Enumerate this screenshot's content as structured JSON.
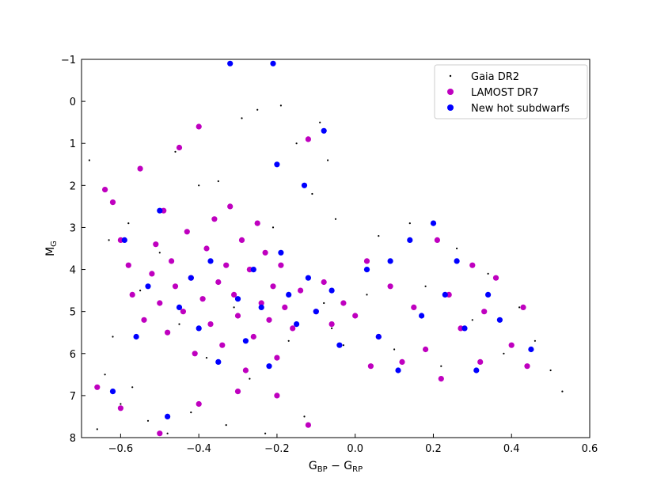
{
  "chart_data": {
    "type": "scatter",
    "title": "",
    "xlabel": "G_BP − G_RP",
    "xlabel_main": "G",
    "xlabel_sub1": "BP",
    "xlabel_sep": " − G",
    "xlabel_sub2": "RP",
    "ylabel_main": "M",
    "ylabel_sub": "G",
    "xlim": [
      -0.7,
      0.6
    ],
    "ylim": [
      8,
      -1
    ],
    "y_inverted": true,
    "x_ticks": [
      -0.6,
      -0.4,
      -0.2,
      0.0,
      0.2,
      0.4,
      0.6
    ],
    "x_tick_labels": [
      "−0.6",
      "−0.4",
      "−0.2",
      "0.0",
      "0.2",
      "0.4",
      "0.6"
    ],
    "y_ticks": [
      -1,
      0,
      1,
      2,
      3,
      4,
      5,
      6,
      7,
      8
    ],
    "y_tick_labels": [
      "−1",
      "0",
      "1",
      "2",
      "3",
      "4",
      "5",
      "6",
      "7",
      "8"
    ],
    "grid": false,
    "legend_position": "top-right",
    "series": [
      {
        "name": "Gaia DR2",
        "marker": "small-dot",
        "color": "#000000",
        "points": [
          [
            -0.68,
            1.4
          ],
          [
            -0.66,
            7.8
          ],
          [
            -0.64,
            6.5
          ],
          [
            -0.63,
            3.3
          ],
          [
            -0.62,
            5.6
          ],
          [
            -0.6,
            7.2
          ],
          [
            -0.58,
            2.9
          ],
          [
            -0.57,
            6.8
          ],
          [
            -0.55,
            4.5
          ],
          [
            -0.53,
            7.6
          ],
          [
            -0.5,
            3.6
          ],
          [
            -0.48,
            7.9
          ],
          [
            -0.46,
            1.2
          ],
          [
            -0.45,
            5.3
          ],
          [
            -0.42,
            7.4
          ],
          [
            -0.4,
            2.0
          ],
          [
            -0.38,
            6.1
          ],
          [
            -0.35,
            1.9
          ],
          [
            -0.33,
            7.7
          ],
          [
            -0.31,
            4.9
          ],
          [
            -0.29,
            0.4
          ],
          [
            -0.27,
            6.6
          ],
          [
            -0.25,
            0.2
          ],
          [
            -0.23,
            7.9
          ],
          [
            -0.21,
            3.0
          ],
          [
            -0.19,
            0.1
          ],
          [
            -0.17,
            5.7
          ],
          [
            -0.15,
            1.0
          ],
          [
            -0.13,
            7.5
          ],
          [
            -0.11,
            2.2
          ],
          [
            -0.09,
            0.5
          ],
          [
            -0.08,
            4.8
          ],
          [
            -0.07,
            1.4
          ],
          [
            -0.06,
            5.4
          ],
          [
            -0.05,
            2.8
          ],
          [
            -0.03,
            5.8
          ],
          [
            0.0,
            5.1
          ],
          [
            0.03,
            4.6
          ],
          [
            0.06,
            3.2
          ],
          [
            0.1,
            5.9
          ],
          [
            0.14,
            2.9
          ],
          [
            0.18,
            4.4
          ],
          [
            0.22,
            6.3
          ],
          [
            0.26,
            3.5
          ],
          [
            0.3,
            5.2
          ],
          [
            0.34,
            4.1
          ],
          [
            0.38,
            6.0
          ],
          [
            0.42,
            4.9
          ],
          [
            0.46,
            5.7
          ],
          [
            0.5,
            6.4
          ],
          [
            0.53,
            6.9
          ]
        ]
      },
      {
        "name": "LAMOST DR7",
        "marker": "circle",
        "color": "#bf00bf",
        "points": [
          [
            -0.64,
            2.1
          ],
          [
            -0.62,
            2.4
          ],
          [
            -0.6,
            3.3
          ],
          [
            -0.58,
            3.9
          ],
          [
            -0.57,
            4.6
          ],
          [
            -0.55,
            1.6
          ],
          [
            -0.54,
            5.2
          ],
          [
            -0.52,
            4.1
          ],
          [
            -0.51,
            3.4
          ],
          [
            -0.5,
            4.8
          ],
          [
            -0.49,
            2.6
          ],
          [
            -0.48,
            5.5
          ],
          [
            -0.47,
            3.8
          ],
          [
            -0.46,
            4.4
          ],
          [
            -0.45,
            1.1
          ],
          [
            -0.44,
            5.0
          ],
          [
            -0.43,
            3.1
          ],
          [
            -0.42,
            4.2
          ],
          [
            -0.41,
            6.0
          ],
          [
            -0.4,
            0.6
          ],
          [
            -0.39,
            4.7
          ],
          [
            -0.38,
            3.5
          ],
          [
            -0.37,
            5.3
          ],
          [
            -0.36,
            2.8
          ],
          [
            -0.35,
            4.3
          ],
          [
            -0.34,
            5.8
          ],
          [
            -0.33,
            3.9
          ],
          [
            -0.32,
            2.5
          ],
          [
            -0.31,
            4.6
          ],
          [
            -0.3,
            5.1
          ],
          [
            -0.29,
            3.3
          ],
          [
            -0.28,
            6.4
          ],
          [
            -0.27,
            4.0
          ],
          [
            -0.26,
            5.6
          ],
          [
            -0.25,
            2.9
          ],
          [
            -0.24,
            4.8
          ],
          [
            -0.23,
            3.6
          ],
          [
            -0.22,
            5.2
          ],
          [
            -0.21,
            4.4
          ],
          [
            -0.2,
            6.1
          ],
          [
            -0.19,
            3.9
          ],
          [
            -0.18,
            4.9
          ],
          [
            -0.16,
            5.4
          ],
          [
            -0.14,
            4.5
          ],
          [
            -0.12,
            0.9
          ],
          [
            -0.1,
            5.0
          ],
          [
            -0.08,
            4.3
          ],
          [
            -0.06,
            5.3
          ],
          [
            -0.03,
            4.8
          ],
          [
            0.0,
            5.1
          ],
          [
            0.03,
            3.8
          ],
          [
            0.06,
            5.6
          ],
          [
            0.09,
            4.4
          ],
          [
            0.12,
            6.2
          ],
          [
            0.15,
            4.9
          ],
          [
            0.18,
            5.9
          ],
          [
            0.21,
            3.3
          ],
          [
            0.24,
            4.6
          ],
          [
            0.27,
            5.4
          ],
          [
            0.3,
            3.9
          ],
          [
            0.33,
            5.0
          ],
          [
            0.36,
            4.2
          ],
          [
            0.4,
            5.8
          ],
          [
            0.43,
            4.9
          ],
          [
            -0.66,
            6.8
          ],
          [
            -0.6,
            7.3
          ],
          [
            -0.5,
            7.9
          ],
          [
            -0.4,
            7.2
          ],
          [
            -0.3,
            6.9
          ],
          [
            -0.2,
            7.0
          ],
          [
            -0.12,
            7.7
          ],
          [
            0.04,
            6.3
          ],
          [
            0.22,
            6.6
          ],
          [
            0.32,
            6.2
          ],
          [
            0.44,
            6.3
          ]
        ]
      },
      {
        "name": "New hot subdwarfs",
        "marker": "circle",
        "color": "#0000ff",
        "points": [
          [
            -0.62,
            6.9
          ],
          [
            -0.59,
            3.3
          ],
          [
            -0.56,
            5.6
          ],
          [
            -0.53,
            4.4
          ],
          [
            -0.5,
            2.6
          ],
          [
            -0.48,
            7.5
          ],
          [
            -0.45,
            4.9
          ],
          [
            -0.42,
            4.2
          ],
          [
            -0.4,
            5.4
          ],
          [
            -0.37,
            3.8
          ],
          [
            -0.35,
            6.2
          ],
          [
            -0.32,
            -0.9
          ],
          [
            -0.3,
            4.7
          ],
          [
            -0.28,
            5.7
          ],
          [
            -0.26,
            4.0
          ],
          [
            -0.24,
            4.9
          ],
          [
            -0.22,
            6.3
          ],
          [
            -0.21,
            -0.9
          ],
          [
            -0.2,
            1.5
          ],
          [
            -0.19,
            3.6
          ],
          [
            -0.17,
            4.6
          ],
          [
            -0.15,
            5.3
          ],
          [
            -0.13,
            2.0
          ],
          [
            -0.12,
            4.2
          ],
          [
            -0.1,
            5.0
          ],
          [
            -0.08,
            0.7
          ],
          [
            -0.06,
            4.5
          ],
          [
            -0.04,
            5.8
          ],
          [
            0.03,
            4.0
          ],
          [
            0.06,
            5.6
          ],
          [
            0.09,
            3.8
          ],
          [
            0.11,
            6.4
          ],
          [
            0.14,
            3.3
          ],
          [
            0.17,
            5.1
          ],
          [
            0.2,
            2.9
          ],
          [
            0.23,
            4.6
          ],
          [
            0.26,
            3.8
          ],
          [
            0.28,
            5.4
          ],
          [
            0.31,
            6.4
          ],
          [
            0.34,
            4.6
          ],
          [
            0.37,
            5.2
          ],
          [
            0.45,
            5.9
          ]
        ]
      }
    ]
  }
}
